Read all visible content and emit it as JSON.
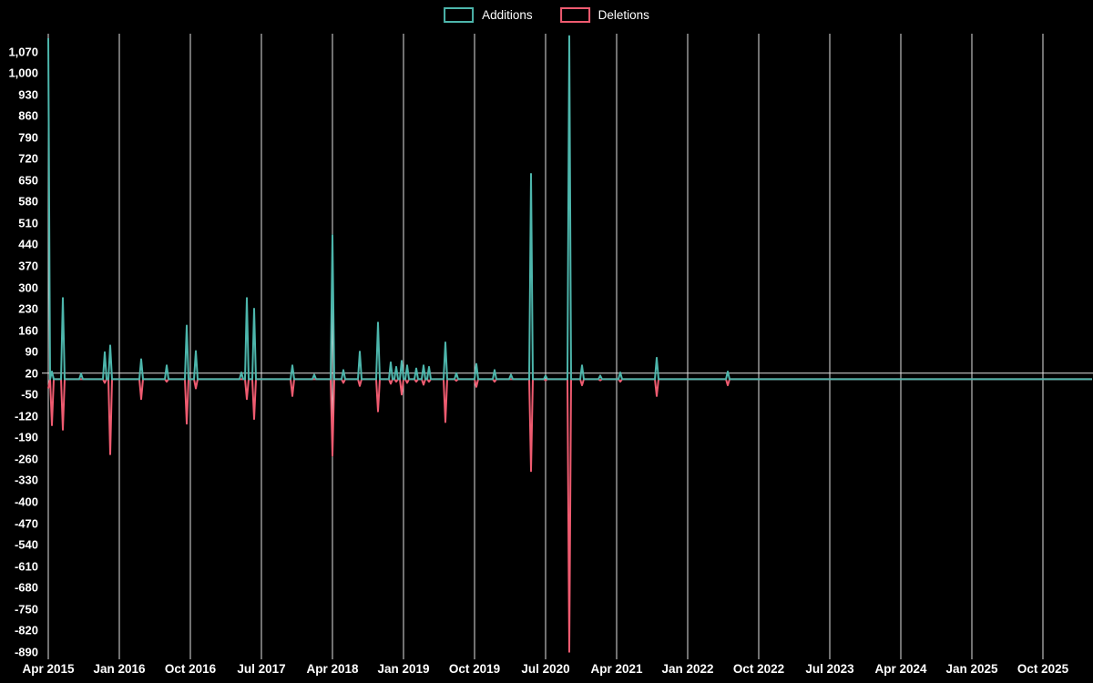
{
  "legend": {
    "position": "top-center",
    "items": [
      {
        "label": "Additions",
        "color": "#4db6ac"
      },
      {
        "label": "Deletions",
        "color": "#ef5b70"
      }
    ]
  },
  "chart_data": {
    "type": "line",
    "description": "Weekly code additions (positive, teal) and deletions (plotted as negative, pink) over time",
    "x_unit": "weeks since Apr 2015",
    "legend_position": "top-center",
    "background_color": "#000000",
    "grid": {
      "color": "#e2e2e2",
      "vertical_at_every_x_tick": true,
      "horizontal_line_at": 20
    },
    "ylim": [
      -916,
      1126
    ],
    "x_range_weeks": [
      0,
      573
    ],
    "x_ticks": [
      {
        "label": "Apr 2015",
        "week": 0
      },
      {
        "label": "Jan 2016",
        "week": 39
      },
      {
        "label": "Oct 2016",
        "week": 78
      },
      {
        "label": "Jul 2017",
        "week": 117
      },
      {
        "label": "Apr 2018",
        "week": 156
      },
      {
        "label": "Jan 2019",
        "week": 195
      },
      {
        "label": "Oct 2019",
        "week": 234
      },
      {
        "label": "Jul 2020",
        "week": 273
      },
      {
        "label": "Apr 2021",
        "week": 312
      },
      {
        "label": "Jan 2022",
        "week": 351
      },
      {
        "label": "Oct 2022",
        "week": 390
      },
      {
        "label": "Jul 2023",
        "week": 429
      },
      {
        "label": "Apr 2024",
        "week": 468
      },
      {
        "label": "Jan 2025",
        "week": 507
      },
      {
        "label": "Oct 2025",
        "week": 546
      }
    ],
    "y_ticks": [
      {
        "value": 1070,
        "label": "1,070"
      },
      {
        "value": 1000,
        "label": "1,000"
      },
      {
        "value": 930,
        "label": "930"
      },
      {
        "value": 860,
        "label": "860"
      },
      {
        "value": 790,
        "label": "790"
      },
      {
        "value": 720,
        "label": "720"
      },
      {
        "value": 650,
        "label": "650"
      },
      {
        "value": 580,
        "label": "580"
      },
      {
        "value": 510,
        "label": "510"
      },
      {
        "value": 440,
        "label": "440"
      },
      {
        "value": 370,
        "label": "370"
      },
      {
        "value": 300,
        "label": "300"
      },
      {
        "value": 230,
        "label": "230"
      },
      {
        "value": 160,
        "label": "160"
      },
      {
        "value": 90,
        "label": "90"
      },
      {
        "value": 20,
        "label": "20"
      },
      {
        "value": -50,
        "label": "-50"
      },
      {
        "value": -120,
        "label": "-120"
      },
      {
        "value": -190,
        "label": "-190"
      },
      {
        "value": -260,
        "label": "-260"
      },
      {
        "value": -330,
        "label": "-330"
      },
      {
        "value": -400,
        "label": "-400"
      },
      {
        "value": -470,
        "label": "-470"
      },
      {
        "value": -540,
        "label": "-540"
      },
      {
        "value": -610,
        "label": "-610"
      },
      {
        "value": -680,
        "label": "-680"
      },
      {
        "value": -750,
        "label": "-750"
      },
      {
        "value": -820,
        "label": "-820"
      },
      {
        "value": -890,
        "label": "-890"
      }
    ],
    "series": [
      {
        "name": "Additions",
        "color": "#4db6ac",
        "baseline": 0
      },
      {
        "name": "Deletions",
        "color": "#ef5b70",
        "baseline": 0
      }
    ],
    "points_format": "[week, additions, deletions]; all unlisted weeks are [w, 0, 0]",
    "points": [
      [
        0,
        1113,
        -30
      ],
      [
        2,
        25,
        -150
      ],
      [
        8,
        265,
        -165
      ],
      [
        18,
        18,
        0
      ],
      [
        31,
        88,
        -12
      ],
      [
        34,
        110,
        -245
      ],
      [
        51,
        65,
        -65
      ],
      [
        65,
        45,
        -8
      ],
      [
        76,
        175,
        -145
      ],
      [
        81,
        92,
        -30
      ],
      [
        106,
        22,
        0
      ],
      [
        109,
        265,
        -65
      ],
      [
        113,
        230,
        -130
      ],
      [
        134,
        45,
        -55
      ],
      [
        146,
        15,
        0
      ],
      [
        156,
        470,
        -250
      ],
      [
        162,
        30,
        -12
      ],
      [
        171,
        90,
        -22
      ],
      [
        181,
        185,
        -105
      ],
      [
        188,
        55,
        -15
      ],
      [
        191,
        40,
        -8
      ],
      [
        194,
        60,
        -50
      ],
      [
        197,
        45,
        -12
      ],
      [
        202,
        35,
        -8
      ],
      [
        206,
        45,
        -18
      ],
      [
        209,
        40,
        -8
      ],
      [
        218,
        120,
        -140
      ],
      [
        224,
        20,
        -5
      ],
      [
        235,
        50,
        -25
      ],
      [
        245,
        30,
        -8
      ],
      [
        254,
        15,
        0
      ],
      [
        265,
        670,
        -300
      ],
      [
        273,
        12,
        -4
      ],
      [
        286,
        1120,
        -890
      ],
      [
        293,
        45,
        -20
      ],
      [
        303,
        12,
        -4
      ],
      [
        314,
        22,
        -8
      ],
      [
        334,
        70,
        -55
      ],
      [
        373,
        25,
        -20
      ]
    ]
  }
}
